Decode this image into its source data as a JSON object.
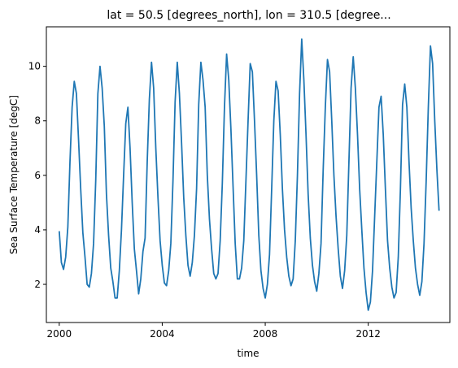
{
  "chart_data": {
    "type": "line",
    "title": "lat = 50.5 [degrees_north], lon = 310.5 [degree...",
    "xlabel": "time",
    "ylabel": "Sea Surface Temperature [degC]",
    "x_start": "2000-01",
    "x_step": "1 month",
    "xlim": [
      1999.5,
      2015.17
    ],
    "ylim": [
      0.6,
      11.45
    ],
    "xticks": [
      2000,
      2004,
      2008,
      2012
    ],
    "xtick_labels": [
      "2000",
      "2004",
      "2008",
      "2012"
    ],
    "yticks": [
      2,
      4,
      6,
      8,
      10
    ],
    "ytick_labels": [
      "2",
      "4",
      "6",
      "8",
      "10"
    ],
    "grid": false,
    "legend": "none",
    "series": [
      {
        "color": "#1f77b4",
        "values": [
          3.95,
          2.8,
          2.55,
          3.0,
          4.1,
          6.5,
          8.5,
          9.45,
          9.0,
          7.3,
          5.5,
          3.9,
          3.0,
          2.0,
          1.9,
          2.4,
          3.5,
          5.8,
          9.0,
          10.0,
          9.2,
          7.8,
          5.3,
          3.8,
          2.6,
          2.1,
          1.5,
          1.5,
          2.5,
          4.0,
          6.0,
          7.9,
          8.5,
          7.0,
          5.0,
          3.3,
          2.5,
          1.65,
          2.2,
          3.2,
          3.7,
          6.5,
          8.8,
          10.15,
          9.2,
          7.0,
          5.2,
          3.6,
          2.7,
          2.05,
          1.95,
          2.5,
          3.5,
          5.8,
          8.7,
          10.15,
          9.0,
          7.2,
          5.2,
          3.8,
          2.7,
          2.3,
          2.8,
          3.8,
          5.5,
          8.6,
          10.15,
          9.5,
          8.5,
          6.0,
          4.4,
          3.3,
          2.4,
          2.2,
          2.4,
          3.6,
          5.7,
          8.5,
          10.45,
          9.5,
          7.7,
          5.6,
          3.5,
          2.2,
          2.2,
          2.6,
          3.6,
          5.8,
          8.0,
          10.1,
          9.8,
          8.0,
          6.0,
          3.8,
          2.5,
          1.85,
          1.5,
          2.0,
          3.1,
          5.5,
          8.0,
          9.45,
          9.1,
          7.5,
          5.5,
          4.0,
          3.0,
          2.3,
          1.95,
          2.2,
          3.6,
          6.0,
          9.0,
          11.0,
          9.5,
          7.5,
          5.3,
          3.7,
          2.7,
          2.1,
          1.75,
          2.4,
          3.5,
          6.2,
          8.5,
          10.25,
          9.8,
          8.0,
          6.0,
          4.5,
          3.3,
          2.3,
          1.85,
          2.5,
          3.8,
          6.5,
          9.2,
          10.35,
          9.2,
          7.5,
          5.5,
          4.0,
          2.6,
          1.7,
          1.05,
          1.35,
          2.5,
          4.5,
          6.5,
          8.5,
          8.9,
          7.5,
          5.5,
          3.6,
          2.6,
          1.9,
          1.5,
          1.7,
          3.0,
          5.5,
          8.6,
          9.35,
          8.5,
          6.5,
          4.8,
          3.6,
          2.6,
          2.0,
          1.6,
          2.1,
          3.5,
          5.8,
          8.5,
          10.75,
          10.1,
          8.0,
          6.2,
          4.7
        ]
      }
    ]
  }
}
